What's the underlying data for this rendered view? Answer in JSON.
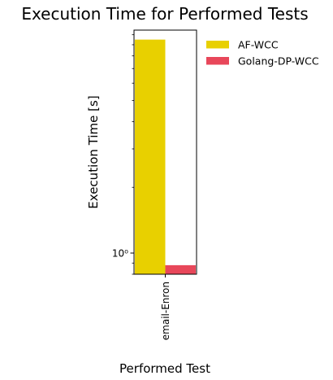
{
  "chart_data": {
    "type": "bar",
    "title": "Execution Time for Performed Tests",
    "xlabel": "Performed Test",
    "ylabel": "Execution Time [s]",
    "yscale": "log",
    "ylim": [
      0.8,
      10.5
    ],
    "grid": false,
    "legend_position": "upper-right-outside",
    "categories": [
      "email-Enron"
    ],
    "series": [
      {
        "name": "AF-WCC",
        "color": "#e8d000",
        "values": [
          9.5
        ]
      },
      {
        "name": "Golang-DP-WCC",
        "color": "#e8475a",
        "values": [
          0.88
        ]
      }
    ],
    "yticks": [
      {
        "value": 1,
        "label": "10⁰"
      }
    ],
    "minor_ticks": [
      0.8,
      0.9,
      2,
      3,
      4,
      5,
      6,
      7,
      8,
      9,
      10
    ]
  }
}
